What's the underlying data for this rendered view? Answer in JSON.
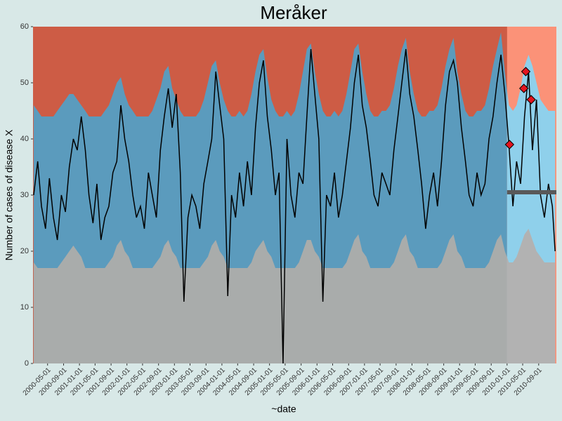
{
  "chart_data": {
    "type": "line",
    "title": "Meråker",
    "xlabel": "~date",
    "ylabel": "Number of cases of disease X",
    "xlim": [
      "2000-01-10",
      "2011-01-15"
    ],
    "ylim": [
      0,
      60
    ],
    "yticks": [
      0,
      10,
      20,
      30,
      40,
      50,
      60
    ],
    "xticks": [
      "2000-05-01",
      "2000-09-01",
      "2001-01-01",
      "2001-05-01",
      "2001-09-01",
      "2002-01-01",
      "2002-05-01",
      "2002-09-01",
      "2003-01-01",
      "2003-05-01",
      "2003-09-01",
      "2004-01-01",
      "2004-05-01",
      "2004-09-01",
      "2005-01-01",
      "2005-05-01",
      "2005-09-01",
      "2006-01-01",
      "2006-05-01",
      "2006-09-01",
      "2007-01-01",
      "2007-05-01",
      "2007-09-01",
      "2008-01-01",
      "2008-05-01",
      "2008-09-01",
      "2009-01-01",
      "2009-05-01",
      "2009-09-01",
      "2010-01-01",
      "2010-05-01",
      "2010-09-01"
    ],
    "x": [
      "2000-01-15",
      "2000-02-15",
      "2000-03-15",
      "2000-04-15",
      "2000-05-15",
      "2000-06-15",
      "2000-07-15",
      "2000-08-15",
      "2000-09-15",
      "2000-10-15",
      "2000-11-15",
      "2000-12-15",
      "2001-01-15",
      "2001-02-15",
      "2001-03-15",
      "2001-04-15",
      "2001-05-15",
      "2001-06-15",
      "2001-07-15",
      "2001-08-15",
      "2001-09-15",
      "2001-10-15",
      "2001-11-15",
      "2001-12-15",
      "2002-01-15",
      "2002-02-15",
      "2002-03-15",
      "2002-04-15",
      "2002-05-15",
      "2002-06-15",
      "2002-07-15",
      "2002-08-15",
      "2002-09-15",
      "2002-10-15",
      "2002-11-15",
      "2002-12-15",
      "2003-01-15",
      "2003-02-15",
      "2003-03-15",
      "2003-04-15",
      "2003-05-15",
      "2003-06-15",
      "2003-07-15",
      "2003-08-15",
      "2003-09-15",
      "2003-10-15",
      "2003-11-15",
      "2003-12-15",
      "2004-01-15",
      "2004-02-15",
      "2004-03-15",
      "2004-04-15",
      "2004-05-15",
      "2004-06-15",
      "2004-07-15",
      "2004-08-15",
      "2004-09-15",
      "2004-10-15",
      "2004-11-15",
      "2004-12-15",
      "2005-01-15",
      "2005-02-15",
      "2005-03-15",
      "2005-04-15",
      "2005-05-15",
      "2005-06-15",
      "2005-07-15",
      "2005-08-15",
      "2005-09-15",
      "2005-10-15",
      "2005-11-15",
      "2005-12-15",
      "2006-01-15",
      "2006-02-15",
      "2006-03-15",
      "2006-04-15",
      "2006-05-15",
      "2006-06-15",
      "2006-07-15",
      "2006-08-15",
      "2006-09-15",
      "2006-10-15",
      "2006-11-15",
      "2006-12-15",
      "2007-01-15",
      "2007-02-15",
      "2007-03-15",
      "2007-04-15",
      "2007-05-15",
      "2007-06-15",
      "2007-07-15",
      "2007-08-15",
      "2007-09-15",
      "2007-10-15",
      "2007-11-15",
      "2007-12-15",
      "2008-01-15",
      "2008-02-15",
      "2008-03-15",
      "2008-04-15",
      "2008-05-15",
      "2008-06-15",
      "2008-07-15",
      "2008-08-15",
      "2008-09-15",
      "2008-10-15",
      "2008-11-15",
      "2008-12-15",
      "2009-01-15",
      "2009-02-15",
      "2009-03-15",
      "2009-04-15",
      "2009-05-15",
      "2009-06-15",
      "2009-07-15",
      "2009-08-15",
      "2009-09-15",
      "2009-10-15",
      "2009-11-15",
      "2009-12-15",
      "2010-01-15",
      "2010-02-15",
      "2010-03-15",
      "2010-04-15",
      "2010-05-15",
      "2010-06-15",
      "2010-07-15",
      "2010-08-15",
      "2010-09-15",
      "2010-10-15",
      "2010-11-15",
      "2010-12-15",
      "2011-01-05"
    ],
    "series": [
      {
        "color": "#000000",
        "values": [
          30,
          36,
          28,
          24,
          33,
          26,
          22,
          30,
          27,
          35,
          40,
          38,
          44,
          38,
          30,
          25,
          32,
          22,
          26,
          28,
          34,
          36,
          46,
          40,
          36,
          30,
          26,
          28,
          24,
          34,
          30,
          26,
          38,
          44,
          49,
          42,
          48,
          34,
          11,
          26,
          30,
          28,
          24,
          32,
          36,
          40,
          52,
          46,
          40,
          12,
          30,
          26,
          34,
          28,
          36,
          30,
          42,
          50,
          54,
          44,
          38,
          30,
          34,
          0,
          40,
          30,
          26,
          34,
          32,
          44,
          56,
          48,
          40,
          11,
          30,
          28,
          34,
          26,
          30,
          36,
          42,
          50,
          55,
          46,
          42,
          36,
          30,
          28,
          34,
          32,
          30,
          38,
          44,
          50,
          56,
          48,
          44,
          38,
          32,
          24,
          30,
          34,
          28,
          36,
          46,
          52,
          54,
          50,
          42,
          36,
          30,
          28,
          34,
          30,
          32,
          40,
          44,
          50,
          55,
          48,
          39,
          28,
          36,
          32,
          44,
          52,
          38,
          47,
          30,
          26,
          32,
          28,
          20
        ]
      }
    ],
    "lower_band": {
      "color": "#a9acab",
      "values": [
        18,
        17,
        17,
        17,
        17,
        17,
        17,
        18,
        19,
        20,
        21,
        20,
        19,
        17,
        17,
        17,
        17,
        17,
        17,
        18,
        19,
        21,
        22,
        20,
        19,
        17,
        17,
        17,
        17,
        17,
        17,
        18,
        19,
        21,
        22,
        20,
        19,
        17,
        17,
        17,
        17,
        17,
        17,
        18,
        19,
        21,
        22,
        20,
        19,
        17,
        17,
        17,
        17,
        17,
        17,
        18,
        20,
        21,
        22,
        20,
        19,
        17,
        17,
        17,
        17,
        17,
        17,
        18,
        20,
        22,
        22,
        20,
        19,
        17,
        17,
        17,
        17,
        17,
        17,
        18,
        20,
        22,
        23,
        20,
        19,
        17,
        17,
        17,
        17,
        17,
        17,
        18,
        20,
        22,
        23,
        20,
        19,
        17,
        17,
        17,
        17,
        17,
        17,
        18,
        20,
        22,
        23,
        20,
        19,
        17,
        17,
        17,
        17,
        17,
        17,
        18,
        20,
        22,
        23,
        20,
        18,
        18,
        19,
        21,
        23,
        24,
        22,
        20,
        19,
        18,
        18,
        18,
        18
      ]
    },
    "upper_band": {
      "color": "#5b9bbd",
      "values": [
        46,
        45,
        44,
        44,
        44,
        44,
        45,
        46,
        47,
        48,
        48,
        47,
        46,
        45,
        44,
        44,
        44,
        44,
        45,
        46,
        48,
        50,
        51,
        48,
        46,
        45,
        44,
        44,
        44,
        44,
        45,
        47,
        49,
        52,
        53,
        49,
        47,
        45,
        44,
        44,
        44,
        44,
        45,
        47,
        50,
        53,
        54,
        50,
        47,
        45,
        44,
        44,
        45,
        44,
        45,
        48,
        52,
        55,
        56,
        51,
        47,
        45,
        44,
        44,
        45,
        44,
        45,
        48,
        52,
        56,
        57,
        52,
        48,
        45,
        44,
        44,
        45,
        44,
        45,
        48,
        52,
        56,
        57,
        52,
        48,
        45,
        44,
        44,
        45,
        45,
        46,
        49,
        53,
        56,
        58,
        52,
        48,
        45,
        44,
        44,
        45,
        45,
        46,
        49,
        53,
        56,
        58,
        52,
        48,
        45,
        44,
        44,
        45,
        45,
        46,
        49,
        53,
        56,
        59,
        52,
        46,
        45,
        46,
        49,
        53,
        55,
        53,
        50,
        47,
        46,
        45,
        45,
        45
      ]
    },
    "above_color": "#cd5c45",
    "forecast": {
      "start": "2010-01-01",
      "colors": {
        "above": "#fb9278",
        "upper": "#8fd0eb",
        "lower": "#b2b2b2"
      }
    },
    "threshold": {
      "x": [
        "2010-01-01",
        "2011-01-15"
      ],
      "value": 30.5,
      "color": "#595959"
    },
    "outbreaks": {
      "color": "#e3141e",
      "x": [
        "2010-01-20",
        "2010-05-10",
        "2010-05-25",
        "2010-07-05"
      ],
      "values": [
        39,
        49,
        52,
        47
      ]
    }
  }
}
